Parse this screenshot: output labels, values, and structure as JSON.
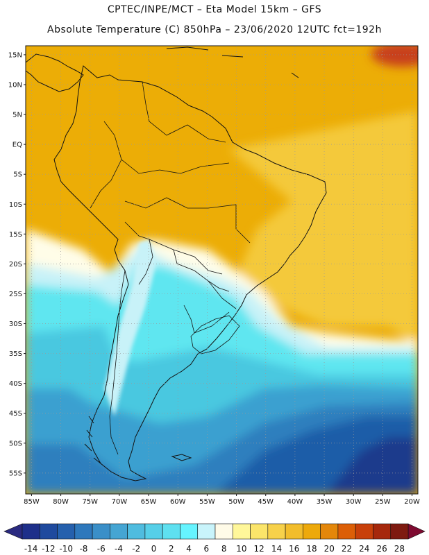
{
  "header": {
    "line1": "CPTEC/INPE/MCT –  Eta Model 15km – GFS",
    "line2": "Absolute Temperature (C) 850hPa – 23/06/2020 12UTC fct=192h"
  },
  "map": {
    "lon_range": [
      -86,
      -19
    ],
    "lat_range": [
      -58.5,
      16.5
    ],
    "lat_labels": [
      "15N",
      "10N",
      "5N",
      "EQ",
      "5S",
      "10S",
      "15S",
      "20S",
      "25S",
      "30S",
      "35S",
      "40S",
      "45S",
      "50S",
      "55S"
    ],
    "lat_values": [
      15,
      10,
      5,
      0,
      -5,
      -10,
      -15,
      -20,
      -25,
      -30,
      -35,
      -40,
      -45,
      -50,
      -55
    ],
    "lon_labels": [
      "85W",
      "80W",
      "75W",
      "70W",
      "65W",
      "60W",
      "55W",
      "50W",
      "45W",
      "40W",
      "35W",
      "30W",
      "25W",
      "20W"
    ],
    "lon_values": [
      -85,
      -80,
      -75,
      -70,
      -65,
      -60,
      -55,
      -50,
      -45,
      -40,
      -35,
      -30,
      -25,
      -20
    ],
    "grid": "dotted",
    "field": "850hPa temperature (C)",
    "colors": {
      "orange_warm": "#ecad06",
      "orange_mid": "#f0b80a",
      "yellow": "#f4c93a",
      "pale_yellow": "#fff8d2",
      "cream": "#fffde8",
      "light_cyan": "#c8f2f8",
      "cyan": "#5ee6f0",
      "cyan_mid": "#48c8e0",
      "blue_mid": "#3aa0d0",
      "blue": "#2e7fbe",
      "blue_dark": "#1f5da8",
      "navy": "#1a3b8c",
      "red_hot": "#c8401a"
    }
  },
  "colorbar": {
    "labels": [
      "-14",
      "-12",
      "-10",
      "-8",
      "-6",
      "-4",
      "-2",
      "0",
      "2",
      "4",
      "6",
      "8",
      "10",
      "12",
      "14",
      "16",
      "18",
      "20",
      "22",
      "24",
      "26",
      "28"
    ],
    "colors": [
      "#1e2f8a",
      "#1f4a9e",
      "#2560ad",
      "#2e78bc",
      "#3a8fc8",
      "#45a5d3",
      "#4fbcdf",
      "#56cfe8",
      "#5ee0f0",
      "#66f4ff",
      "#c9f4fb",
      "#fffbe8",
      "#fff79a",
      "#fbe56a",
      "#f7d14a",
      "#f2bd2b",
      "#eda90b",
      "#e4870a",
      "#dc5f07",
      "#c8400a",
      "#a6280c",
      "#7e1a10"
    ],
    "end_low": "#2a2a80",
    "end_high": "#7e0a30"
  }
}
